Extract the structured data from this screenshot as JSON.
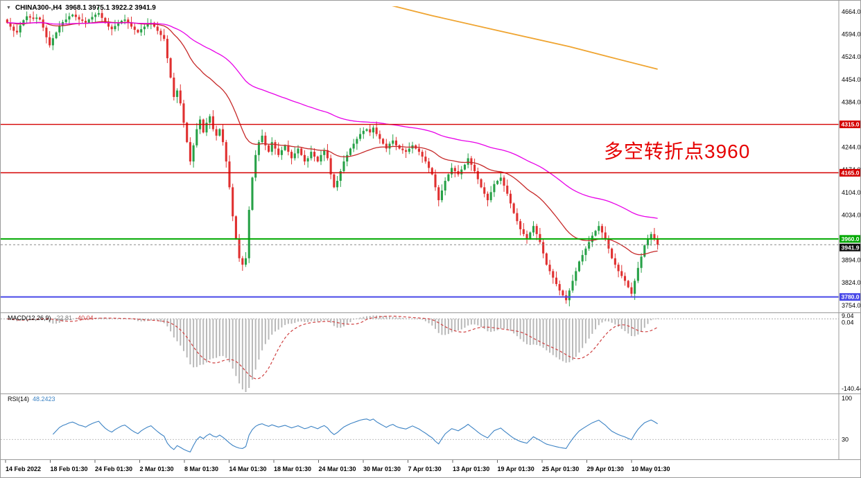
{
  "window": {
    "symbol_timeframe": "CHINA300-,H4",
    "ohlc_text": "3968.1 3975.1 3922.2 3941.9"
  },
  "annotation": {
    "text": "多空转折点3960",
    "color": "#e60000"
  },
  "macd_panel": {
    "label": "MACD(12,26,9)",
    "value_main": "-22.81",
    "value_signal": "-40.04",
    "scale_top": "9.04",
    "scale_zero": "0.04",
    "scale_bottom": "-140.44"
  },
  "rsi_panel": {
    "label": "RSI(14)",
    "value": "48.2423",
    "scale_top": "100",
    "scale_level": "30"
  },
  "chart_data": {
    "type": "candlestick",
    "title": "CHINA300- H4",
    "y_axis": {
      "ticks": [
        4664.0,
        4594.0,
        4524.0,
        4454.0,
        4384.0,
        4314.0,
        4244.0,
        4174.0,
        4104.0,
        4034.0,
        3964.0,
        3894.0,
        3824.0,
        3754.0
      ]
    },
    "x_axis": {
      "labels": [
        "14 Feb 2022",
        "18 Feb 01:30",
        "24 Feb 01:30",
        "2 Mar 01:30",
        "8 Mar 01:30",
        "14 Mar 01:30",
        "18 Mar 01:30",
        "24 Mar 01:30",
        "30 Mar 01:30",
        "7 Apr 01:30",
        "13 Apr 01:30",
        "19 Apr 01:30",
        "25 Apr 01:30",
        "29 Apr 01:30",
        "10 May 01:30"
      ]
    },
    "levels": [
      {
        "value": 4315.0,
        "label": "4315.0",
        "color": "#d40000",
        "thickness": 1.4
      },
      {
        "value": 4165.0,
        "label": "4165.0",
        "color": "#d40000",
        "thickness": 1.4
      },
      {
        "value": 3960.0,
        "label": "3960.0",
        "color": "#00a800",
        "thickness": 2
      },
      {
        "value": 3780.0,
        "label": "3780.0",
        "color": "#4848e8",
        "thickness": 2
      }
    ],
    "current_price": {
      "value": 3941.9,
      "label": "3941.9",
      "color": "#111111"
    },
    "candles": {
      "up_color": "#27a147",
      "down_color": "#e03030",
      "closes": [
        4630,
        4618,
        4605,
        4600,
        4622,
        4638,
        4650,
        4646,
        4642,
        4646,
        4640,
        4615,
        4585,
        4560,
        4582,
        4600,
        4620,
        4632,
        4640,
        4650,
        4655,
        4648,
        4640,
        4636,
        4630,
        4640,
        4648,
        4655,
        4660,
        4645,
        4630,
        4618,
        4610,
        4620,
        4628,
        4636,
        4640,
        4630,
        4618,
        4608,
        4600,
        4610,
        4618,
        4625,
        4630,
        4618,
        4605,
        4592,
        4580,
        4520,
        4460,
        4400,
        4420,
        4380,
        4320,
        4260,
        4200,
        4250,
        4300,
        4330,
        4290,
        4320,
        4340,
        4300,
        4280,
        4300,
        4260,
        4200,
        4120,
        4030,
        3960,
        3900,
        3880,
        3900,
        4050,
        4150,
        4220,
        4260,
        4280,
        4250,
        4230,
        4260,
        4240,
        4220,
        4235,
        4250,
        4230,
        4210,
        4225,
        4240,
        4220,
        4200,
        4210,
        4230,
        4215,
        4200,
        4220,
        4235,
        4210,
        4160,
        4120,
        4140,
        4170,
        4200,
        4220,
        4240,
        4255,
        4270,
        4285,
        4295,
        4300,
        4290,
        4305,
        4285,
        4270,
        4255,
        4240,
        4255,
        4265,
        4250,
        4240,
        4235,
        4230,
        4240,
        4250,
        4240,
        4230,
        4215,
        4200,
        4180,
        4160,
        4120,
        4080,
        4110,
        4140,
        4160,
        4180,
        4170,
        4160,
        4175,
        4190,
        4210,
        4190,
        4170,
        4145,
        4120,
        4100,
        4080,
        4105,
        4130,
        4140,
        4150,
        4125,
        4100,
        4070,
        4040,
        4015,
        3990,
        3975,
        3960,
        3980,
        4000,
        3975,
        3950,
        3915,
        3880,
        3860,
        3840,
        3820,
        3800,
        3785,
        3770,
        3800,
        3830,
        3860,
        3890,
        3910,
        3930,
        3950,
        3970,
        3985,
        4000,
        3980,
        3960,
        3930,
        3900,
        3880,
        3860,
        3845,
        3830,
        3810,
        3790,
        3830,
        3870,
        3905,
        3940,
        3958,
        3975,
        3960,
        3942
      ]
    },
    "moving_averages": [
      {
        "type": "ema",
        "period": 34,
        "color": "#c62828"
      },
      {
        "type": "ema",
        "period": 90,
        "color": "#e800e8"
      }
    ],
    "ma_orange": {
      "color": "#efa430",
      "points": [
        [
          111,
          4700
        ],
        [
          130,
          4652
        ],
        [
          150,
          4606
        ],
        [
          172,
          4556
        ],
        [
          185,
          4522
        ],
        [
          199,
          4486
        ]
      ]
    },
    "indicators": {
      "macd": {
        "fast": 12,
        "slow": 26,
        "signal": 9,
        "hist_color": "#b8b8b8",
        "signal_color": "#cf4040",
        "current_main": -22.81,
        "current_signal": -40.04,
        "scale_min": -140.44,
        "scale_max": 9.04
      },
      "rsi": {
        "period": 14,
        "color": "#3b82c4",
        "level": 30,
        "current": 48.2423,
        "scale": [
          0,
          100
        ]
      }
    }
  }
}
